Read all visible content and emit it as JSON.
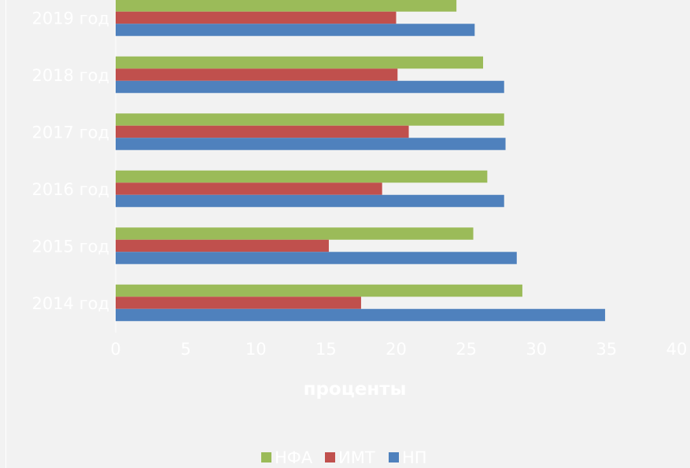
{
  "chart_data": {
    "type": "bar",
    "orientation": "horizontal",
    "categories": [
      "2014 год",
      "2015 год",
      "2016 год",
      "2017 год",
      "2018 год",
      "2019 год"
    ],
    "series": [
      {
        "name": "НП",
        "color": "#4f81bd",
        "values": [
          34.9,
          28.6,
          27.7,
          27.8,
          27.7,
          25.6
        ]
      },
      {
        "name": "ИМТ",
        "color": "#c0504d",
        "values": [
          17.5,
          15.2,
          19.0,
          20.9,
          20.1,
          20.0
        ]
      },
      {
        "name": "НФА",
        "color": "#9bbb59",
        "values": [
          29.0,
          25.5,
          26.5,
          27.7,
          26.2,
          24.3
        ]
      }
    ],
    "xlabel": "проценты",
    "xlim": [
      0,
      40
    ],
    "xticks": [
      0,
      5,
      10,
      15,
      20,
      25,
      30,
      35,
      40
    ],
    "legend_position": "bottom",
    "legend_order": [
      "НФА",
      "ИМТ",
      "НП"
    ],
    "grid": false
  },
  "colors": {
    "background": "#f2f2f2",
    "text": "#ffffff"
  }
}
